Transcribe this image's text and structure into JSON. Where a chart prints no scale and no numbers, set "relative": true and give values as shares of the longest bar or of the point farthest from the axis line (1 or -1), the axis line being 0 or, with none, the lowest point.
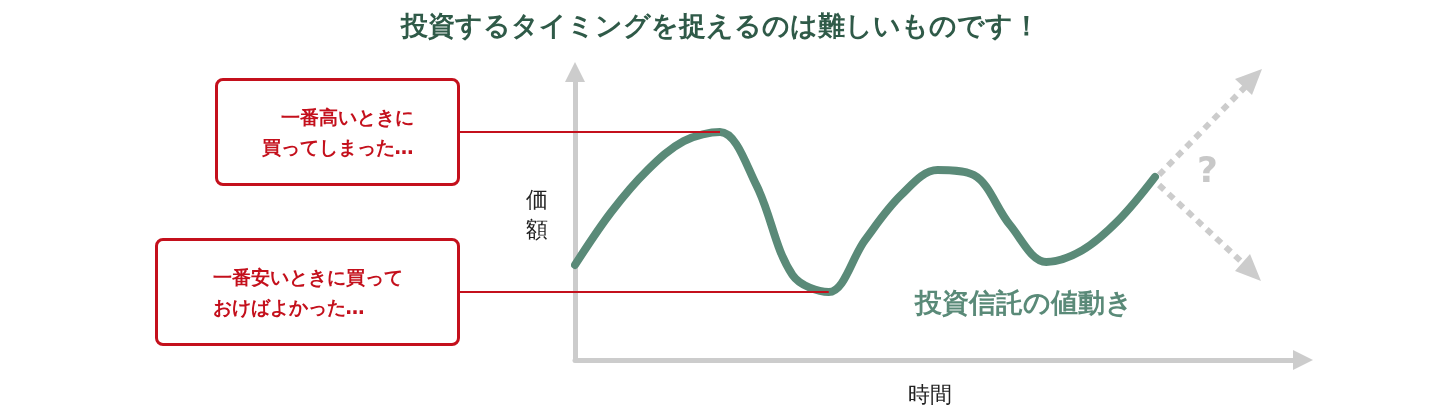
{
  "chart_data": {
    "type": "line",
    "title": "投資するタイミングを捉えるのは難しいものです！",
    "xlabel": "時間",
    "ylabel": "価額",
    "relative": true,
    "marker": "none",
    "grid": false,
    "legend": false,
    "categories": [
      null,
      null,
      null,
      null,
      null,
      null,
      null,
      null,
      null,
      null,
      null,
      null,
      null,
      null,
      null,
      null,
      null,
      null,
      null,
      null,
      null
    ],
    "series": [
      {
        "name": "投資信託の値動き",
        "color": "#5a8a78",
        "values": [
          0.417,
          0.649,
          0.833,
          0.96,
          1,
          0.768,
          0.373,
          0.298,
          0.526,
          0.724,
          0.833,
          0.811,
          0.592,
          0.43,
          0.482,
          0.614,
          0.803,
          null,
          null,
          null,
          null
        ]
      }
    ],
    "ref_lines": [
      {
        "axis": "y",
        "value": 1,
        "label": "一番高いときに買ってしまった…",
        "color": "#c4101c"
      },
      {
        "axis": "y",
        "value": 0.298,
        "label": "一番安いときに買っておけばよかった…",
        "color": "#c4101c"
      }
    ],
    "annotations": [
      "?"
    ]
  }
}
